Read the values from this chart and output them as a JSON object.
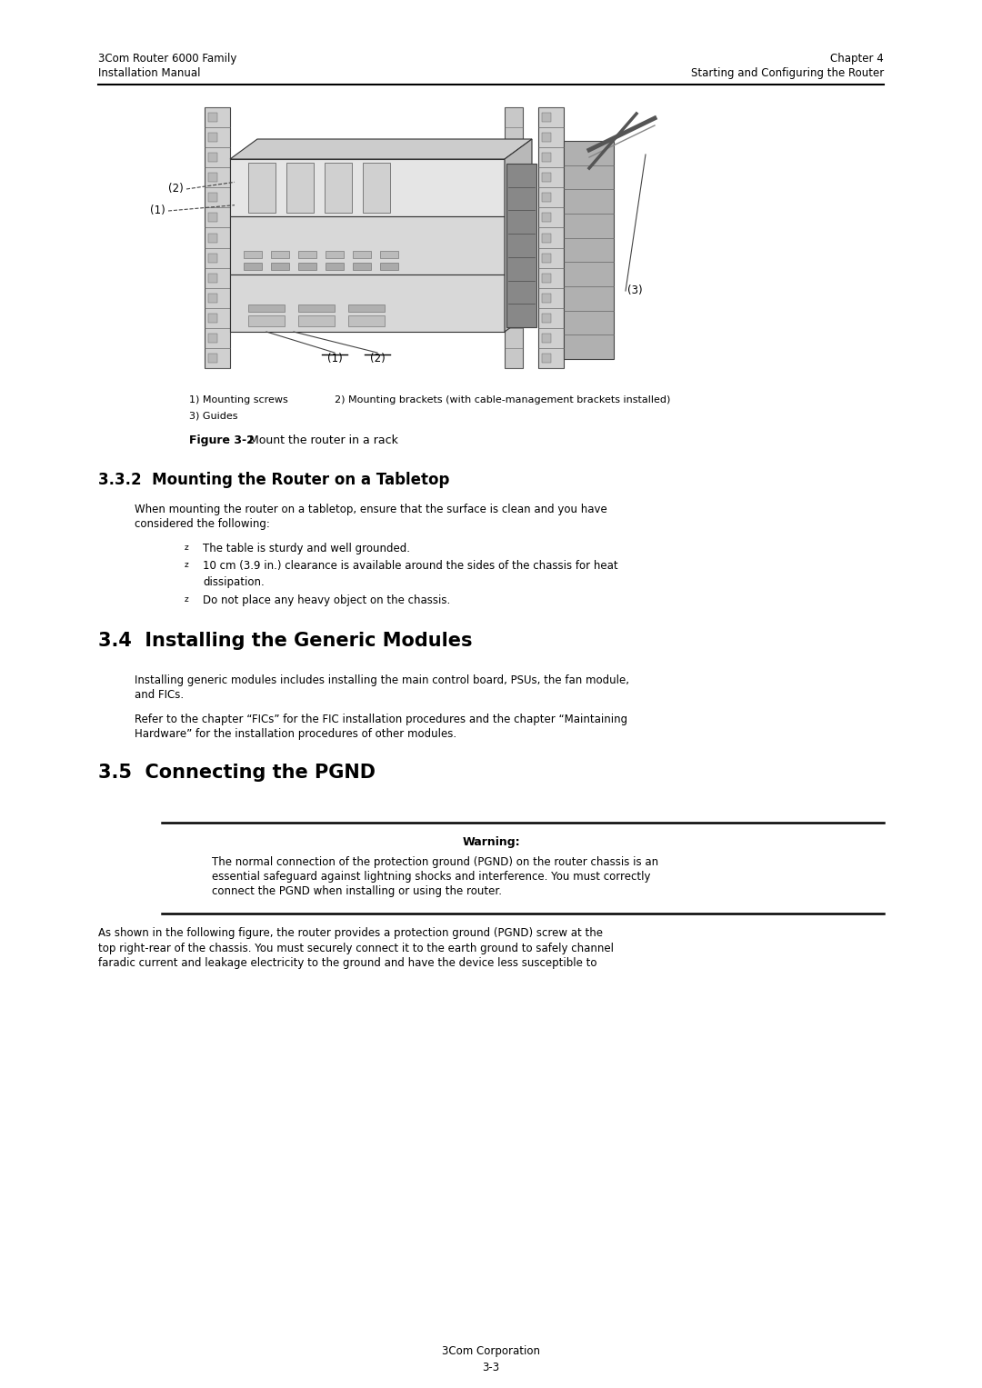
{
  "header_left_line1": "3Com Router 6000 Family",
  "header_left_line2": "Installation Manual",
  "header_right_line1": "Chapter 4",
  "header_right_line2": "Starting and Configuring the Router",
  "fig_caption_bold": "Figure 3-2",
  "fig_caption_normal": " Mount the router in a rack",
  "legend_line1a": "1) Mounting screws",
  "legend_line1b": "2) Mounting brackets (with cable-management brackets installed)",
  "legend_line2": "3) Guides",
  "section_332_title": "3.3.2  Mounting the Router on a Tabletop",
  "bullet1": "The table is sturdy and well grounded.",
  "bullet2a": "10 cm (3.9 in.) clearance is available around the sides of the chassis for heat",
  "bullet2b": "dissipation.",
  "bullet3": "Do not place any heavy object on the chassis.",
  "section_34_title": "3.4  Installing the Generic Modules",
  "section_34_body1a": "Installing generic modules includes installing the main control board, PSUs, the fan module,",
  "section_34_body1b": "and FICs.",
  "section_34_body2a": "Refer to the chapter “FICs” for the FIC installation procedures and the chapter “Maintaining",
  "section_34_body2b": "Hardware” for the installation procedures of other modules.",
  "section_35_title": "3.5  Connecting the PGND",
  "warning_title": "Warning:",
  "warning_body1": "The normal connection of the protection ground (PGND) on the router chassis is an",
  "warning_body2": "essential safeguard against lightning shocks and interference. You must correctly",
  "warning_body3": "connect the PGND when installing or using the router.",
  "bottom_body1": "As shown in the following figure, the router provides a protection ground (PGND) screw at the",
  "bottom_body2": "top right-rear of the chassis. You must securely connect it to the earth ground to safely channel",
  "bottom_body3": "faradic current and leakage electricity to the ground and have the device less susceptible to",
  "footer_center": "3Com Corporation",
  "footer_page": "3-3",
  "bg_color": "#ffffff",
  "text_color": "#000000"
}
